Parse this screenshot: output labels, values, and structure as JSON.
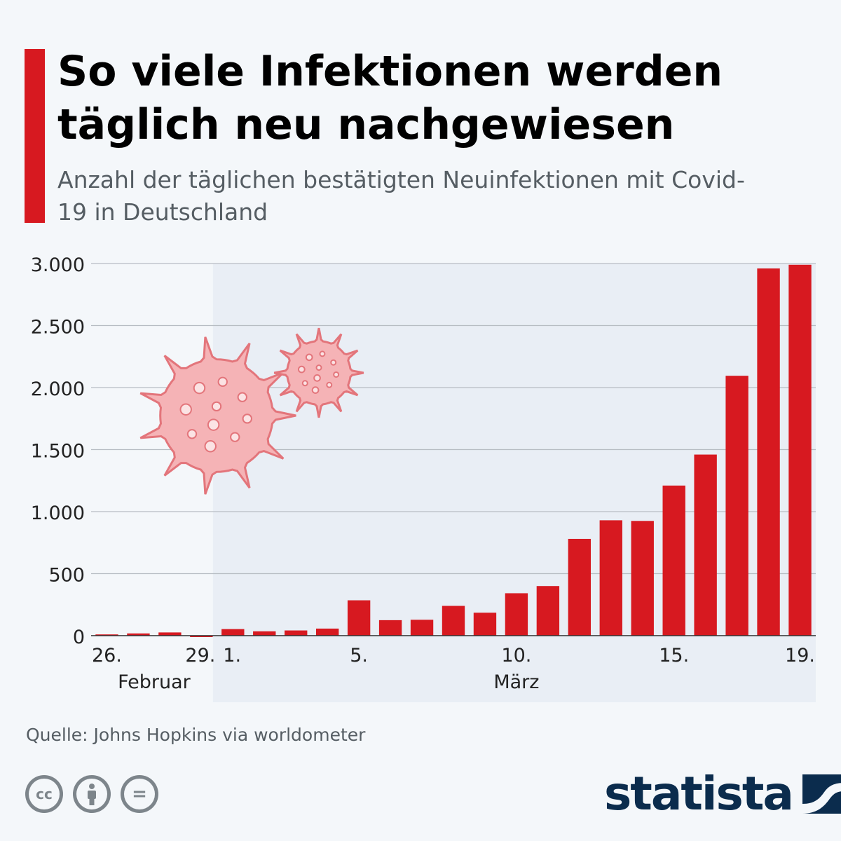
{
  "header": {
    "title": "So viele Infektionen werden täglich neu nachgewiesen",
    "subtitle": "Anzahl der täglichen bestätigten Neuinfektionen mit Covid-19 in Deutschland",
    "accent_color": "#d71920"
  },
  "chart_data": {
    "type": "bar",
    "title": "So viele Infektionen werden täglich neu nachgewiesen",
    "subtitle": "Anzahl der täglichen bestätigten Neuinfektionen mit Covid-19 in Deutschland",
    "categories": [
      "26.",
      "27.",
      "28.",
      "29.",
      "1.",
      "2.",
      "3.",
      "4.",
      "5.",
      "6.",
      "7.",
      "8.",
      "9.",
      "10.",
      "11.",
      "12.",
      "13.",
      "14.",
      "15.",
      "16.",
      "17.",
      "18.",
      "19."
    ],
    "values": [
      10,
      18,
      26,
      0,
      53,
      35,
      42,
      57,
      285,
      125,
      128,
      240,
      185,
      342,
      400,
      780,
      930,
      925,
      1210,
      1460,
      2095,
      2960,
      2990
    ],
    "x_tick_labels": [
      "26.",
      "29.",
      "1.",
      "5.",
      "10.",
      "15.",
      "19."
    ],
    "month_labels": [
      "Februar",
      "März"
    ],
    "y_ticks": [
      0,
      500,
      1000,
      1500,
      2000,
      2500,
      3000
    ],
    "y_tick_labels": [
      "0",
      "500",
      "1.000",
      "1.500",
      "2.000",
      "2.500",
      "3.000"
    ],
    "ylim": [
      0,
      3000
    ],
    "xlabel": "",
    "ylabel": "",
    "grid": true,
    "highlight_region": "März",
    "bar_color": "#d71920",
    "region_color": "#e9eef5"
  },
  "footer": {
    "source": "Quelle: Johns Hopkins via worldometer",
    "license_icons": [
      "cc-icon",
      "attribution-icon",
      "no-derivatives-icon"
    ],
    "license_glyphs": [
      "cc",
      "",
      "="
    ],
    "brand": "statista"
  }
}
